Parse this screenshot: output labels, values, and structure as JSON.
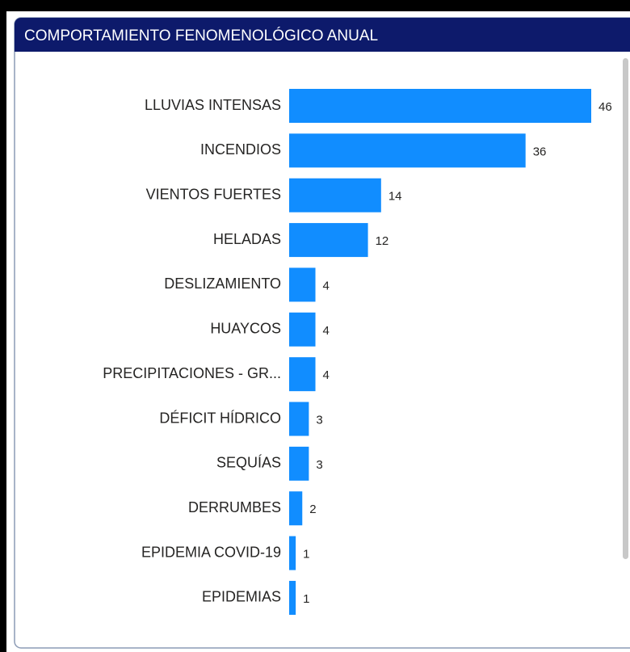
{
  "chart_data": {
    "type": "barh",
    "title": "COMPORTAMIENTO FENOMENOLÓGICO ANUAL",
    "categories": [
      "LLUVIAS INTENSAS",
      "INCENDIOS",
      "VIENTOS FUERTES",
      "HELADAS",
      "DESLIZAMIENTO",
      "HUAYCOS",
      "PRECIPITACIONES - GR...",
      "DÉFICIT HÍDRICO",
      "SEQUÍAS",
      "DERRUMBES",
      "EPIDEMIA COVID-19",
      "EPIDEMIAS"
    ],
    "values": [
      46,
      36,
      14,
      12,
      4,
      4,
      4,
      3,
      3,
      2,
      1,
      1
    ],
    "color": "#118dff"
  }
}
